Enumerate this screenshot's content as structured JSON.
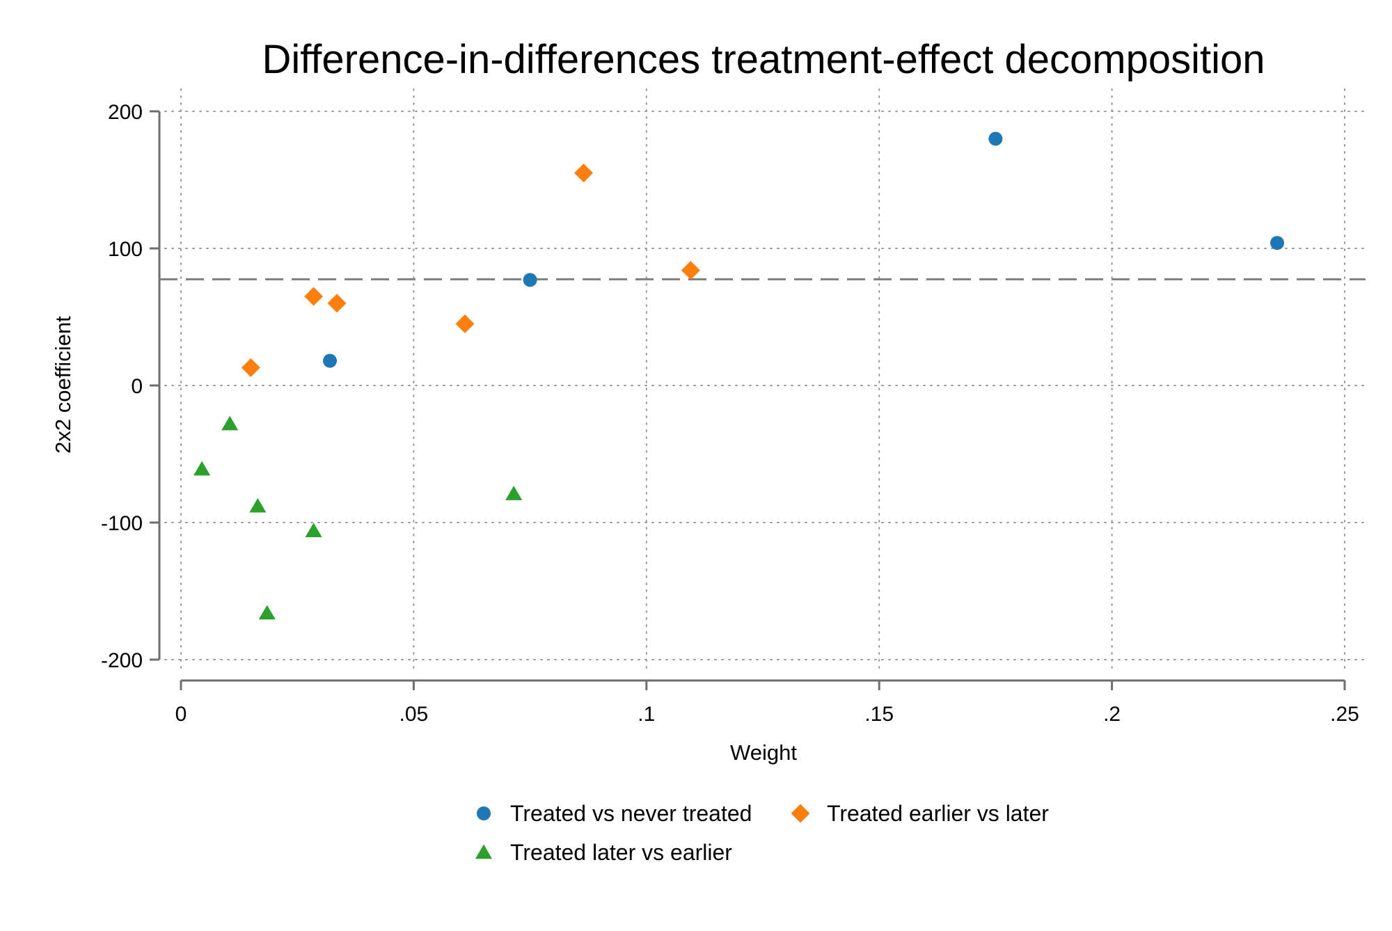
{
  "chart_data": {
    "type": "scatter",
    "title": "Difference-in-differences treatment-effect decomposition",
    "xlabel": "Weight",
    "ylabel": "2x2 coefficient",
    "xlim": [
      0,
      0.25
    ],
    "ylim": [
      -200,
      200
    ],
    "x_ticks": [
      {
        "value": 0,
        "label": "0"
      },
      {
        "value": 0.05,
        "label": ".05"
      },
      {
        "value": 0.1,
        "label": ".1"
      },
      {
        "value": 0.15,
        "label": ".15"
      },
      {
        "value": 0.2,
        "label": ".2"
      },
      {
        "value": 0.25,
        "label": ".25"
      }
    ],
    "y_ticks": [
      {
        "value": 200,
        "label": "200"
      },
      {
        "value": 100,
        "label": "100"
      },
      {
        "value": 0,
        "label": "0"
      },
      {
        "value": -100,
        "label": "-100"
      },
      {
        "value": -200,
        "label": "-200"
      }
    ],
    "grid": true,
    "reference_line": {
      "axis": "y",
      "value": 77.5,
      "style": "dashed",
      "color": "#7f7f7f"
    },
    "legend_position": "bottom",
    "series": [
      {
        "name": "Treated vs never treated",
        "marker": "circle",
        "color": "#1f77b4",
        "points": [
          {
            "x": 0.032,
            "y": 18
          },
          {
            "x": 0.075,
            "y": 77
          },
          {
            "x": 0.175,
            "y": 180
          },
          {
            "x": 0.2355,
            "y": 104
          }
        ]
      },
      {
        "name": "Treated earlier vs later",
        "marker": "diamond",
        "color": "#ff7f0e",
        "points": [
          {
            "x": 0.015,
            "y": 13
          },
          {
            "x": 0.0285,
            "y": 65
          },
          {
            "x": 0.0335,
            "y": 60
          },
          {
            "x": 0.061,
            "y": 45
          },
          {
            "x": 0.0865,
            "y": 155
          },
          {
            "x": 0.1095,
            "y": 84
          }
        ]
      },
      {
        "name": "Treated later vs earlier",
        "marker": "triangle",
        "color": "#2ca02c",
        "points": [
          {
            "x": 0.0045,
            "y": -61
          },
          {
            "x": 0.0105,
            "y": -28
          },
          {
            "x": 0.0165,
            "y": -88
          },
          {
            "x": 0.0185,
            "y": -166
          },
          {
            "x": 0.0285,
            "y": -106
          },
          {
            "x": 0.0715,
            "y": -79
          }
        ]
      }
    ]
  }
}
